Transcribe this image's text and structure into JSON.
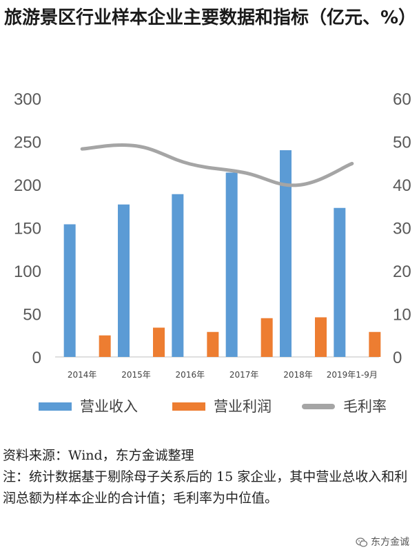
{
  "title": "旅游景区行业样本企业主要数据和指标（亿元、%）",
  "chart_data": {
    "type": "bar",
    "categories": [
      "2014年",
      "2015年",
      "2016年",
      "2017年",
      "2018年",
      "2019年1-9月"
    ],
    "series": [
      {
        "name": "营业收入",
        "kind": "bar",
        "axis": "left",
        "color": "#5B9BD5",
        "values": [
          154,
          177,
          189,
          214,
          240,
          173
        ]
      },
      {
        "name": "营业利润",
        "kind": "bar",
        "axis": "left",
        "color": "#ED7D31",
        "values": [
          25,
          34,
          29,
          45,
          46,
          29
        ]
      },
      {
        "name": "毛利率",
        "kind": "line",
        "axis": "right",
        "color": "#A5A5A5",
        "values": [
          48.3,
          49.0,
          44.8,
          42.8,
          39.9,
          44.9
        ]
      }
    ],
    "y_left": {
      "min": 0,
      "max": 300,
      "ticks": [
        0,
        50,
        100,
        150,
        200,
        250,
        300
      ]
    },
    "y_right": {
      "min": 0,
      "max": 60,
      "ticks": [
        0,
        10,
        20,
        30,
        40,
        50,
        60
      ]
    },
    "grid": false,
    "legend_position": "bottom"
  },
  "notes": {
    "source": "资料来源：Wind，东方金诚整理",
    "remark": "注：统计数据基于剔除母子关系后的 15 家企业，其中营业总收入和利润总额为样本企业的合计值；毛利率为中位值。"
  },
  "watermark": "东方金诚"
}
